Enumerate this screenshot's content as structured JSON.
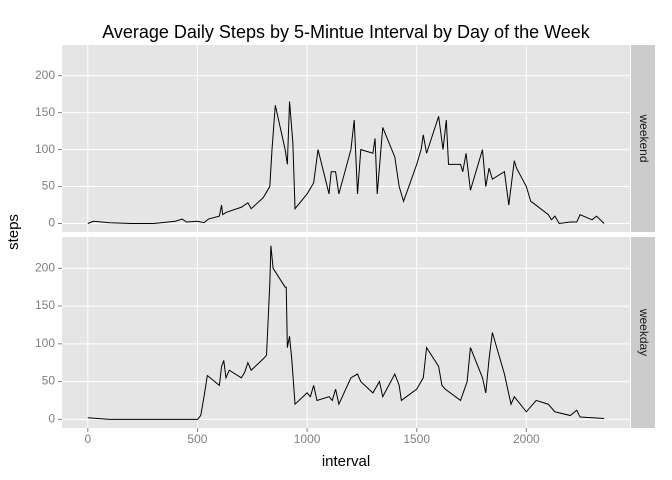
{
  "chart_data": [
    {
      "type": "line",
      "title": "Average Daily Steps by 5-Mintue Interval by Day of the Week",
      "ylabel": "steps",
      "strip": "weekend",
      "color": "#000000",
      "grid": true,
      "xlim": [
        -117.75,
        2472.75
      ],
      "ylim": [
        -11.5,
        241.5
      ],
      "yticks": [
        0,
        50,
        100,
        150,
        200
      ],
      "x": [
        0,
        25,
        100,
        200,
        300,
        400,
        430,
        450,
        500,
        530,
        550,
        600,
        610,
        615,
        630,
        700,
        730,
        745,
        800,
        830,
        840,
        855,
        900,
        910,
        920,
        935,
        945,
        1000,
        1030,
        1050,
        1100,
        1110,
        1130,
        1145,
        1200,
        1215,
        1230,
        1245,
        1300,
        1310,
        1320,
        1345,
        1400,
        1420,
        1440,
        1500,
        1520,
        1530,
        1545,
        1600,
        1620,
        1635,
        1645,
        1700,
        1710,
        1725,
        1745,
        1800,
        1815,
        1830,
        1845,
        1900,
        1920,
        1945,
        1955,
        2000,
        2020,
        2030,
        2100,
        2115,
        2130,
        2150,
        2200,
        2230,
        2245,
        2300,
        2320,
        2355
      ],
      "values": [
        0,
        3,
        1,
        0,
        0,
        3,
        6,
        2,
        3,
        1,
        6,
        10,
        25,
        12,
        15,
        22,
        28,
        20,
        35,
        50,
        100,
        160,
        100,
        80,
        165,
        110,
        20,
        40,
        55,
        100,
        40,
        70,
        70,
        40,
        100,
        140,
        40,
        100,
        95,
        115,
        40,
        130,
        90,
        50,
        30,
        80,
        100,
        120,
        95,
        145,
        100,
        140,
        80,
        80,
        70,
        95,
        45,
        100,
        50,
        75,
        60,
        70,
        25,
        85,
        75,
        50,
        30,
        28,
        12,
        5,
        10,
        0,
        2,
        2,
        12,
        5,
        10,
        0
      ]
    },
    {
      "type": "line",
      "xlabel": "interval",
      "strip": "weekday",
      "color": "#000000",
      "grid": true,
      "xlim": [
        -117.75,
        2472.75
      ],
      "xticks": [
        0,
        500,
        1000,
        1500,
        2000
      ],
      "ylim": [
        -11.5,
        241.5
      ],
      "yticks": [
        0,
        50,
        100,
        150,
        200
      ],
      "x": [
        0,
        100,
        200,
        300,
        400,
        500,
        515,
        530,
        545,
        600,
        610,
        620,
        630,
        645,
        700,
        715,
        730,
        745,
        800,
        815,
        830,
        835,
        845,
        900,
        905,
        910,
        920,
        930,
        945,
        1000,
        1015,
        1030,
        1045,
        1100,
        1115,
        1130,
        1145,
        1200,
        1230,
        1245,
        1300,
        1330,
        1345,
        1400,
        1420,
        1430,
        1500,
        1530,
        1545,
        1600,
        1615,
        1630,
        1700,
        1730,
        1745,
        1800,
        1815,
        1830,
        1845,
        1900,
        1915,
        1930,
        1945,
        2000,
        2030,
        2045,
        2100,
        2115,
        2130,
        2200,
        2230,
        2245,
        2300,
        2355
      ],
      "values": [
        2,
        0,
        0,
        0,
        0,
        0,
        5,
        30,
        58,
        45,
        70,
        78,
        55,
        65,
        55,
        62,
        75,
        65,
        80,
        85,
        180,
        230,
        200,
        175,
        175,
        95,
        110,
        80,
        20,
        35,
        30,
        45,
        25,
        30,
        25,
        40,
        20,
        55,
        60,
        50,
        35,
        50,
        30,
        60,
        45,
        25,
        40,
        55,
        95,
        70,
        45,
        40,
        25,
        50,
        95,
        55,
        35,
        80,
        115,
        60,
        40,
        20,
        30,
        10,
        20,
        25,
        20,
        15,
        10,
        5,
        12,
        3,
        2,
        1
      ]
    }
  ]
}
